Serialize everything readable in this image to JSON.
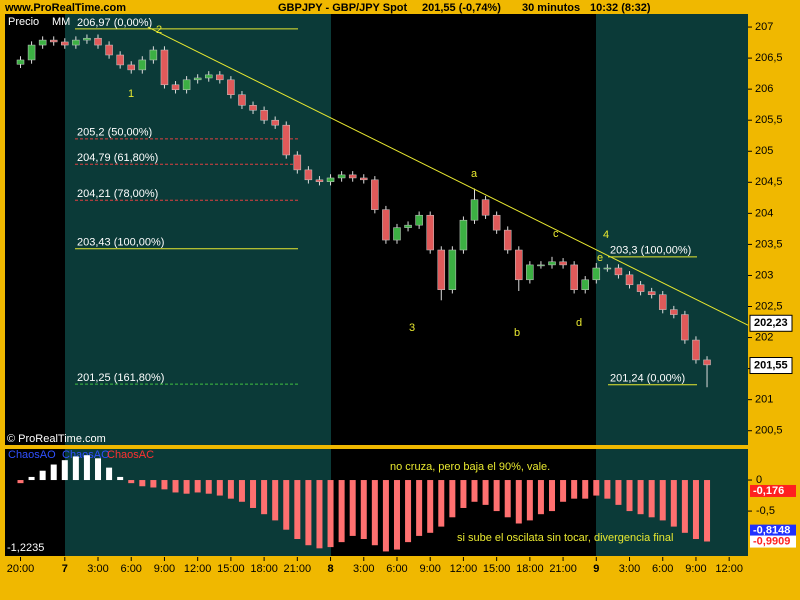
{
  "chart_data": {
    "type": "candlestick",
    "site": "www.ProRealTime.com",
    "title": "GBPJPY - GBP/JPY Spot",
    "last_change": "201,55 (-0,74%)",
    "period": "30 minutos",
    "time": "10:32 (8:32)",
    "price_label": "Precio",
    "ma_label": "MM",
    "copyright": "© ProRealTime.com",
    "x": [
      -4,
      -3,
      -2,
      -1,
      0,
      1,
      2,
      3,
      4,
      5,
      6,
      7,
      8,
      9,
      10,
      11,
      12,
      13,
      14,
      15,
      16,
      17,
      18,
      19,
      20,
      21,
      22,
      23,
      24,
      25,
      26,
      27,
      28,
      29,
      30,
      31,
      32,
      33,
      34,
      35,
      36,
      37,
      38,
      39,
      40,
      41,
      42,
      43,
      44,
      45,
      46,
      47,
      48,
      49,
      50,
      51,
      52,
      53,
      54,
      55,
      56,
      57,
      58
    ],
    "open": [
      206.4,
      206.47,
      206.71,
      206.79,
      206.76,
      206.71,
      206.79,
      206.82,
      206.71,
      206.55,
      206.39,
      206.31,
      206.47,
      206.63,
      206.07,
      205.99,
      206.15,
      206.18,
      206.23,
      206.15,
      205.91,
      205.74,
      205.66,
      205.5,
      205.42,
      204.94,
      204.7,
      204.54,
      204.51,
      204.57,
      204.62,
      204.57,
      204.54,
      204.06,
      203.57,
      203.77,
      203.81,
      203.97,
      203.41,
      202.77,
      203.41,
      203.89,
      204.22,
      203.97,
      203.73,
      203.41,
      202.93,
      203.17,
      203.17,
      203.22,
      203.17,
      202.77,
      202.93,
      203.12,
      203.12,
      203.01,
      202.85,
      202.74,
      202.69,
      202.45,
      202.37,
      201.96,
      201.64
    ],
    "high": [
      206.53,
      206.77,
      206.85,
      206.85,
      206.82,
      206.85,
      206.88,
      206.88,
      206.77,
      206.61,
      206.45,
      206.53,
      206.69,
      206.69,
      206.13,
      206.21,
      206.24,
      206.29,
      206.29,
      206.21,
      205.97,
      205.8,
      205.72,
      205.56,
      205.48,
      205.0,
      204.76,
      204.6,
      204.63,
      204.68,
      204.68,
      204.63,
      204.6,
      204.12,
      203.83,
      203.87,
      204.03,
      204.03,
      203.47,
      203.47,
      203.95,
      204.4,
      204.28,
      204.03,
      203.79,
      203.47,
      203.23,
      203.23,
      203.3,
      203.28,
      203.23,
      202.99,
      203.2,
      203.18,
      203.18,
      203.07,
      202.91,
      202.8,
      202.75,
      202.51,
      202.43,
      202.02,
      201.7
    ],
    "low": [
      206.34,
      206.41,
      206.65,
      206.7,
      206.65,
      206.65,
      206.73,
      206.65,
      206.49,
      206.33,
      206.25,
      206.25,
      206.41,
      206.01,
      205.93,
      205.93,
      206.09,
      206.12,
      206.09,
      205.85,
      205.68,
      205.6,
      205.44,
      205.36,
      204.88,
      204.64,
      204.48,
      204.45,
      204.45,
      204.51,
      204.51,
      204.48,
      204.0,
      203.51,
      203.51,
      203.71,
      203.75,
      203.35,
      202.6,
      202.71,
      203.35,
      203.83,
      203.91,
      203.67,
      203.35,
      202.75,
      202.87,
      203.11,
      203.11,
      203.11,
      202.71,
      202.71,
      202.87,
      203.06,
      202.95,
      202.79,
      202.68,
      202.63,
      202.39,
      202.31,
      201.9,
      201.58,
      201.2
    ],
    "close": [
      206.47,
      206.71,
      206.79,
      206.76,
      206.71,
      206.79,
      206.82,
      206.71,
      206.55,
      206.39,
      206.31,
      206.47,
      206.63,
      206.07,
      205.99,
      206.15,
      206.18,
      206.23,
      206.15,
      205.91,
      205.74,
      205.66,
      205.5,
      205.42,
      204.94,
      204.7,
      204.54,
      204.51,
      204.57,
      204.62,
      204.57,
      204.54,
      204.06,
      203.57,
      203.77,
      203.81,
      203.97,
      203.41,
      202.77,
      203.41,
      203.89,
      204.22,
      203.97,
      203.73,
      203.41,
      202.93,
      203.17,
      203.17,
      203.22,
      203.17,
      202.77,
      202.93,
      203.12,
      203.12,
      203.01,
      202.85,
      202.74,
      202.69,
      202.45,
      202.37,
      201.96,
      201.64,
      201.56
    ],
    "up_color": "#3cb043",
    "down_color": "#e05a5a",
    "xlim": [
      -5.4,
      61.7
    ],
    "xticks": [
      {
        "value": -4,
        "label": "20:00"
      },
      {
        "value": 0,
        "label": "7"
      },
      {
        "value": 3,
        "label": "3:00"
      },
      {
        "value": 6,
        "label": "6:00"
      },
      {
        "value": 9,
        "label": "9:00"
      },
      {
        "value": 12,
        "label": "12:00"
      },
      {
        "value": 15,
        "label": "15:00"
      },
      {
        "value": 18,
        "label": "18:00"
      },
      {
        "value": 21,
        "label": "21:00"
      },
      {
        "value": 24,
        "label": "8"
      },
      {
        "value": 27,
        "label": "3:00"
      },
      {
        "value": 30,
        "label": "6:00"
      },
      {
        "value": 33,
        "label": "9:00"
      },
      {
        "value": 36,
        "label": "12:00"
      },
      {
        "value": 39,
        "label": "15:00"
      },
      {
        "value": 42,
        "label": "18:00"
      },
      {
        "value": 45,
        "label": "21:00"
      },
      {
        "value": 48,
        "label": "9"
      },
      {
        "value": 51,
        "label": "3:00"
      },
      {
        "value": 54,
        "label": "6:00"
      },
      {
        "value": 57,
        "label": "9:00"
      },
      {
        "value": 60,
        "label": "12:00"
      }
    ],
    "ylim": [
      200.27,
      207.21
    ],
    "yticks": [
      207,
      {
        "value": 206.5,
        "label": "206,5"
      },
      206,
      {
        "value": 205.5,
        "label": "205,5"
      },
      205,
      {
        "value": 204.5,
        "label": "204,5"
      },
      204,
      {
        "value": 203.5,
        "label": "203,5"
      },
      203,
      {
        "value": 202.5,
        "label": "202,5"
      },
      202,
      {
        "value": 201.5,
        "label": "201,5"
      },
      201,
      {
        "value": 200.5,
        "label": "200,5"
      }
    ],
    "price_boxes": [
      {
        "value": 202.23,
        "label": "202,23"
      },
      {
        "value": 201.55,
        "label": "201,55"
      }
    ],
    "trendline": {
      "x": [
        7.5,
        61.7
      ],
      "y": [
        207,
        202.2
      ],
      "color": "#e8e830"
    },
    "fib1": [
      {
        "value": 206.97,
        "label": "206,97 (0,00%)",
        "color": "#e8e830"
      },
      {
        "value": 205.2,
        "label": "205,2 (50,00%)",
        "color": "#e04040"
      },
      {
        "value": 204.79,
        "label": "204,79 (61,80%)",
        "color": "#e04040"
      },
      {
        "value": 204.21,
        "label": "204,21 (78,00%)",
        "color": "#e04040"
      },
      {
        "value": 203.43,
        "label": "203,43 (100,00%)",
        "color": "#e8e830"
      },
      {
        "value": 201.25,
        "label": "201,25 (161,80%)",
        "color": "#40c040"
      }
    ],
    "fib2": [
      {
        "value": 203.3,
        "label": "203,3 (100,00%)",
        "color": "#e8e830"
      },
      {
        "value": 201.24,
        "label": "201,24 (0,00%)",
        "color": "#e8e830"
      }
    ],
    "waves": [
      "1",
      "2",
      "3",
      "4",
      "a",
      "b",
      "c",
      "d",
      "e"
    ],
    "indicator": {
      "labels": [
        "ChaosAO",
        "ChaosAO",
        "ChaosAC"
      ],
      "label_colors": [
        "#3050ff",
        "#3050ff",
        "#ff3030"
      ],
      "values": [
        -0.05,
        0.05,
        0.15,
        0.25,
        0.32,
        0.38,
        0.4,
        0.35,
        0.2,
        0.05,
        -0.05,
        -0.1,
        -0.12,
        -0.15,
        -0.2,
        -0.22,
        -0.2,
        -0.22,
        -0.25,
        -0.3,
        -0.35,
        -0.45,
        -0.55,
        -0.65,
        -0.8,
        -0.95,
        -1.05,
        -1.1,
        -1.08,
        -1.0,
        -0.9,
        -0.95,
        -1.05,
        -1.15,
        -1.12,
        -1.0,
        -0.9,
        -0.85,
        -0.75,
        -0.6,
        -0.45,
        -0.35,
        -0.4,
        -0.5,
        -0.6,
        -0.7,
        -0.65,
        -0.55,
        -0.5,
        -0.35,
        -0.3,
        -0.3,
        -0.25,
        -0.3,
        -0.4,
        -0.5,
        -0.55,
        -0.6,
        -0.65,
        -0.75,
        -0.85,
        -0.95,
        -0.99
      ],
      "pos_color": "#ffffff",
      "neg_color": "#ff7070",
      "ylim": [
        -1.2235,
        0.5
      ],
      "yticks": [
        0,
        {
          "value": -0.5,
          "label": "-0,5"
        }
      ],
      "min_tick": {
        "value": -1.2235,
        "label": "-1,2235"
      },
      "last_values": [
        {
          "value": -0.176,
          "label": "-0,176",
          "color": "#ff2020"
        },
        {
          "value": -0.8148,
          "label": "-0,8148",
          "color": "#2030ff"
        },
        {
          "value": -0.9909,
          "label": "-0,9909",
          "color": "#ff2020"
        }
      ],
      "notes": [
        "no cruza, pero baja el 90%, vale.",
        "si sube el oscilata sin tocar, divergencia final"
      ]
    }
  }
}
